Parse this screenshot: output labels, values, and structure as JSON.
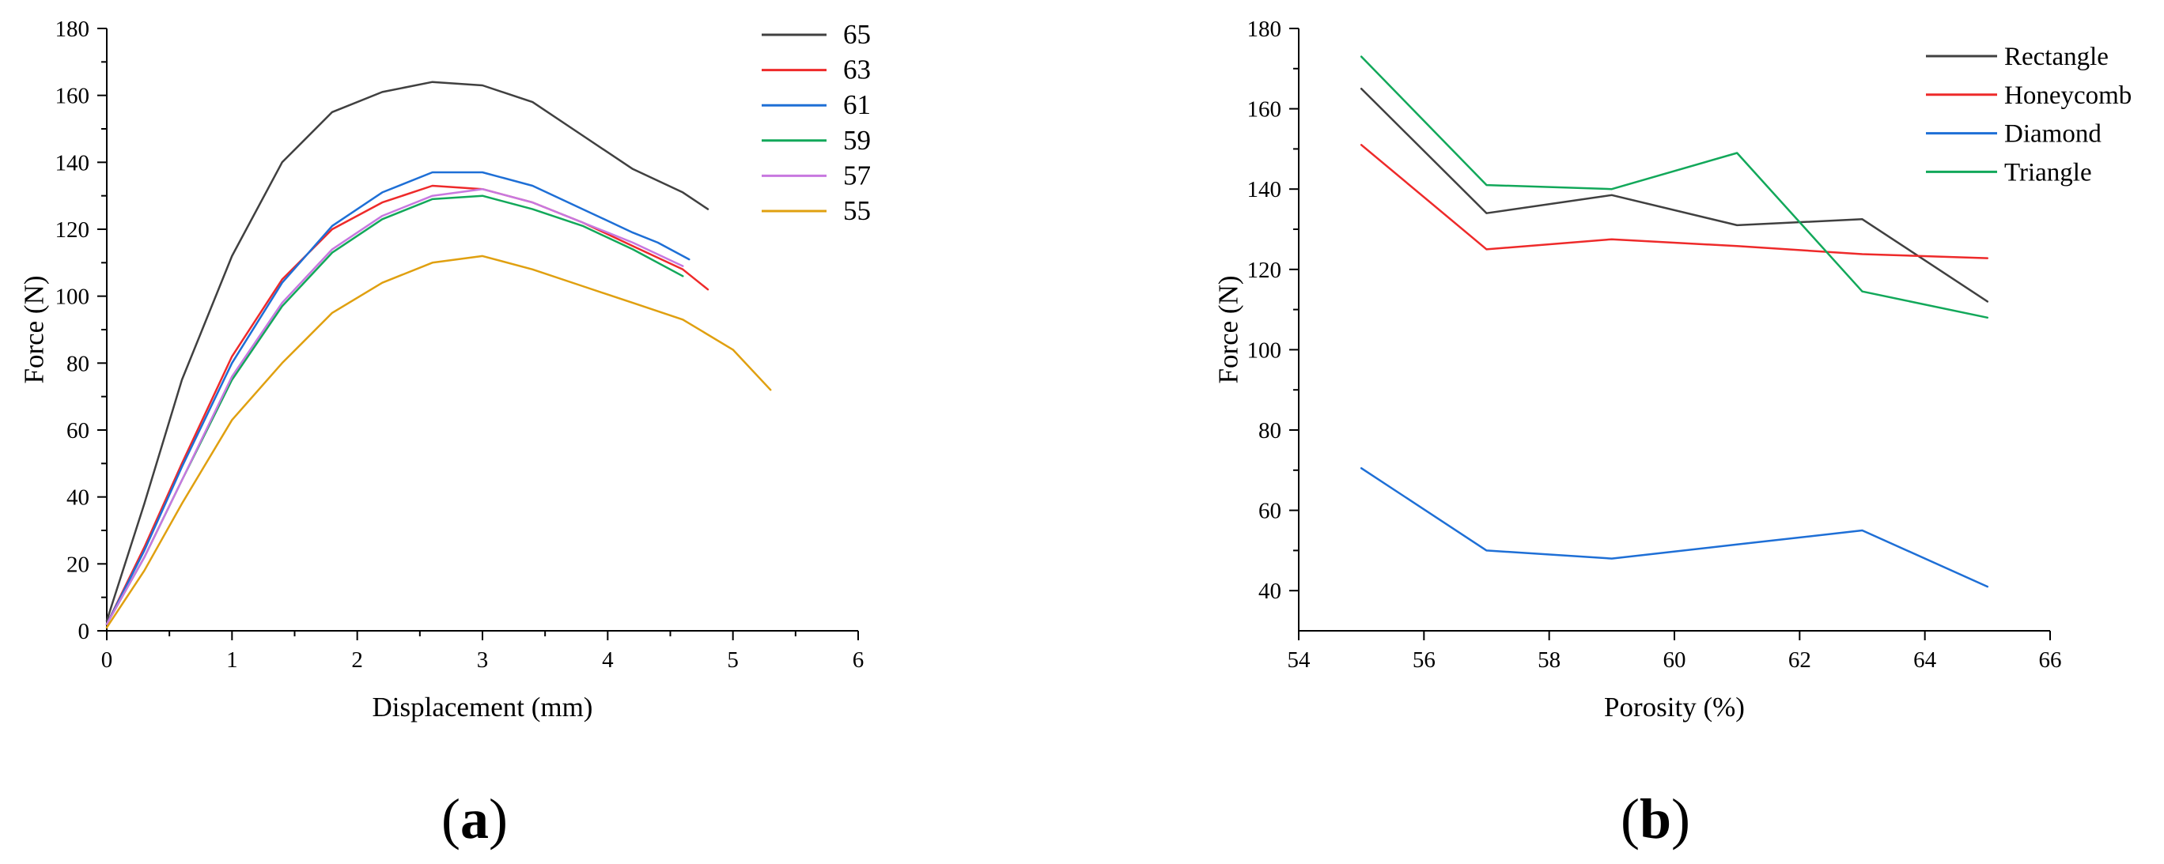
{
  "chart_data": [
    {
      "type": "line",
      "panel": "a",
      "xlabel": "Displacement (mm)",
      "ylabel": "Force (N)",
      "xlim": [
        0,
        6
      ],
      "ylim": [
        0,
        180
      ],
      "xticks": [
        0,
        1,
        2,
        3,
        4,
        5,
        6
      ],
      "yticks": [
        0,
        20,
        40,
        60,
        80,
        100,
        120,
        140,
        160,
        180
      ],
      "legend_position": "top-right",
      "series": [
        {
          "name": "65",
          "color": "#404040",
          "x": [
            0,
            0.3,
            0.6,
            1.0,
            1.4,
            1.8,
            2.2,
            2.6,
            3.0,
            3.4,
            3.8,
            4.2,
            4.6,
            4.8
          ],
          "y": [
            3,
            38,
            75,
            112,
            140,
            155,
            161,
            164,
            163,
            158,
            148,
            138,
            131,
            126
          ]
        },
        {
          "name": "63",
          "color": "#ee2a2a",
          "x": [
            0,
            0.3,
            0.6,
            1.0,
            1.4,
            1.8,
            2.2,
            2.6,
            3.0,
            3.4,
            3.8,
            4.2,
            4.6,
            4.8
          ],
          "y": [
            2,
            25,
            50,
            82,
            105,
            120,
            128,
            133,
            132,
            128,
            122,
            115,
            108,
            102
          ]
        },
        {
          "name": "61",
          "color": "#1e6fd6",
          "x": [
            0,
            0.3,
            0.6,
            1.0,
            1.4,
            1.8,
            2.2,
            2.6,
            3.0,
            3.4,
            3.8,
            4.2,
            4.4,
            4.65
          ],
          "y": [
            2,
            24,
            49,
            80,
            104,
            121,
            131,
            137,
            137,
            133,
            126,
            119,
            116,
            111
          ]
        },
        {
          "name": "59",
          "color": "#12a85a",
          "x": [
            0,
            0.3,
            0.6,
            1.0,
            1.4,
            1.8,
            2.2,
            2.6,
            3.0,
            3.4,
            3.8,
            4.2,
            4.6
          ],
          "y": [
            2,
            22,
            45,
            75,
            97,
            113,
            123,
            129,
            130,
            126,
            121,
            114,
            106
          ]
        },
        {
          "name": "57",
          "color": "#c878e0",
          "x": [
            0,
            0.3,
            0.6,
            1.0,
            1.4,
            1.8,
            2.2,
            2.6,
            3.0,
            3.4,
            3.8,
            4.2,
            4.6
          ],
          "y": [
            2,
            22,
            45,
            76,
            98,
            114,
            124,
            130,
            132,
            128,
            122,
            116,
            109
          ]
        },
        {
          "name": "55",
          "color": "#e0a010",
          "x": [
            0,
            0.3,
            0.6,
            1.0,
            1.4,
            1.8,
            2.2,
            2.6,
            3.0,
            3.4,
            3.8,
            4.2,
            4.6,
            5.0,
            5.3
          ],
          "y": [
            1,
            18,
            38,
            63,
            80,
            95,
            104,
            110,
            112,
            108,
            103,
            98,
            93,
            84,
            72
          ]
        }
      ]
    },
    {
      "type": "line",
      "panel": "b",
      "xlabel": "Porosity (%)",
      "ylabel": "Force (N)",
      "xlim": [
        54,
        66
      ],
      "ylim": [
        30,
        180
      ],
      "xticks": [
        54,
        56,
        58,
        60,
        62,
        64,
        66
      ],
      "yticks": [
        40,
        60,
        80,
        100,
        120,
        140,
        160,
        180
      ],
      "legend_position": "top-right",
      "series": [
        {
          "name": "Rectangle",
          "color": "#404040",
          "x": [
            55,
            57,
            59,
            61,
            63,
            65
          ],
          "y": [
            165,
            134,
            138.5,
            131,
            132.5,
            112
          ]
        },
        {
          "name": "Honeycomb",
          "color": "#ee2a2a",
          "x": [
            55,
            57,
            59,
            61,
            63,
            65
          ],
          "y": [
            151,
            125,
            127.5,
            125.8,
            123.8,
            122.8
          ]
        },
        {
          "name": "Diamond",
          "color": "#1e6fd6",
          "x": [
            55,
            57,
            59,
            61,
            63,
            65
          ],
          "y": [
            70.5,
            50,
            48,
            51.5,
            55,
            41
          ]
        },
        {
          "name": "Triangle",
          "color": "#12a85a",
          "x": [
            55,
            57,
            59,
            61,
            63,
            65
          ],
          "y": [
            173,
            141,
            140,
            149,
            114.5,
            108
          ]
        }
      ]
    }
  ],
  "panel_labels": {
    "a": {
      "open": "(",
      "letter": "a",
      "close": ")"
    },
    "b": {
      "open": "(",
      "letter": "b",
      "close": ")"
    }
  }
}
